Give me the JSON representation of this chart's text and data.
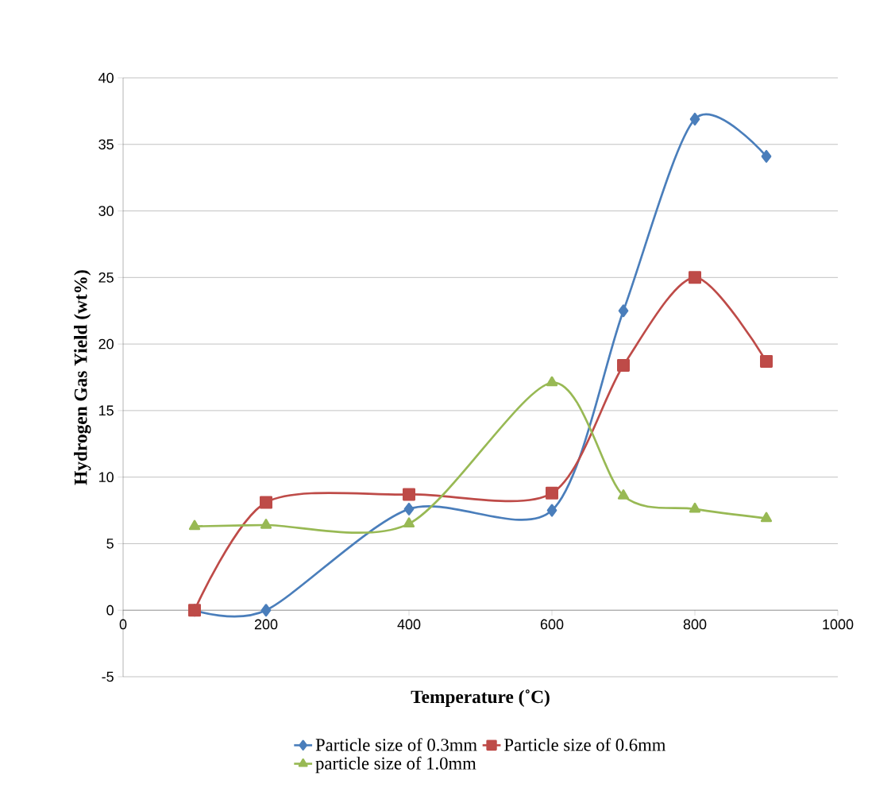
{
  "chart_data": {
    "type": "line",
    "xlabel": "Temperature (˚C)",
    "ylabel": "Hydrogen Gas Yield (wt%)",
    "x": [
      100,
      200,
      400,
      600,
      700,
      800,
      900
    ],
    "series": [
      {
        "name": "Particle size of 0.3mm",
        "color": "#4a7ebb",
        "marker": "diamond",
        "values": [
          0,
          0,
          7.6,
          7.5,
          22.5,
          36.9,
          34.1
        ]
      },
      {
        "name": "Particle size of 0.6mm",
        "color": "#be4b48",
        "marker": "square",
        "values": [
          0,
          8.1,
          8.7,
          8.8,
          18.4,
          25.0,
          18.7
        ]
      },
      {
        "name": "particle size of 1.0mm",
        "color": "#98b954",
        "marker": "triangle",
        "values": [
          6.3,
          6.4,
          6.5,
          17.1,
          8.6,
          7.6,
          6.9
        ]
      }
    ],
    "xlim": [
      0,
      1000
    ],
    "xticks": [
      0,
      200,
      400,
      600,
      800,
      1000
    ],
    "ylim": [
      -5,
      40
    ],
    "yticks": [
      -5,
      0,
      5,
      10,
      15,
      20,
      25,
      30,
      35,
      40
    ],
    "grid": "y",
    "legend": "bottom",
    "line_style": "solid"
  }
}
